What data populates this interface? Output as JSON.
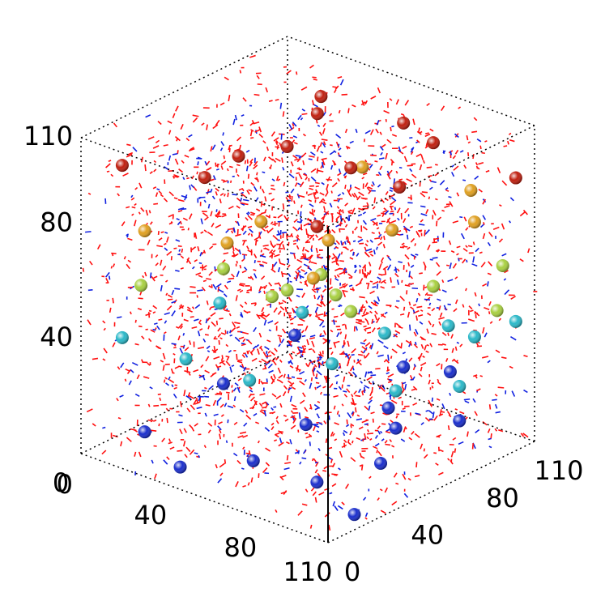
{
  "chart_data": {
    "type": "scatter3d",
    "xlim": [
      0,
      110
    ],
    "xticks": [
      0,
      40,
      80,
      110
    ],
    "ylim": [
      0,
      110
    ],
    "yticks": [
      0,
      40,
      80,
      110
    ],
    "zlim": [
      0,
      110
    ],
    "zticks": [
      0,
      40,
      80,
      110
    ],
    "series": [
      {
        "color": "#1a2ecc",
        "x": [
          20,
          40,
          60,
          80,
          100,
          90,
          70,
          110,
          30,
          50,
          105,
          20,
          60,
          85
        ],
        "y": [
          10,
          5,
          20,
          30,
          40,
          60,
          80,
          70,
          40,
          60,
          20,
          90,
          100,
          95
        ],
        "z": [
          10,
          5,
          8,
          3,
          12,
          15,
          10,
          20,
          20,
          5,
          2,
          18,
          15,
          22
        ]
      },
      {
        "color": "#2ab8c8",
        "x": [
          10,
          30,
          50,
          70,
          90,
          110,
          100,
          80,
          40,
          60,
          20,
          110
        ],
        "y": [
          10,
          20,
          30,
          50,
          60,
          70,
          90,
          100,
          70,
          90,
          50,
          100
        ],
        "z": [
          40,
          35,
          30,
          35,
          28,
          32,
          40,
          35,
          38,
          30,
          42,
          45
        ]
      },
      {
        "color": "#a8d040",
        "x": [
          10,
          30,
          50,
          70,
          90,
          110,
          60,
          40,
          100,
          80
        ],
        "y": [
          20,
          40,
          50,
          60,
          80,
          90,
          30,
          80,
          105,
          40
        ],
        "z": [
          55,
          60,
          55,
          50,
          58,
          52,
          62,
          48,
          60,
          65
        ]
      },
      {
        "color": "#e0a020",
        "x": [
          20,
          40,
          60,
          80,
          100,
          50,
          30,
          90,
          70
        ],
        "y": [
          10,
          30,
          60,
          70,
          90,
          90,
          60,
          100,
          40
        ],
        "z": [
          80,
          75,
          72,
          78,
          80,
          85,
          70,
          85,
          68
        ]
      },
      {
        "color": "#c02010",
        "x": [
          10,
          30,
          50,
          70,
          90,
          110,
          40,
          60,
          20,
          80,
          100,
          30
        ],
        "y": [
          10,
          30,
          50,
          60,
          80,
          100,
          80,
          100,
          60,
          30,
          50,
          90
        ],
        "z": [
          100,
          95,
          105,
          100,
          108,
          95,
          110,
          100,
          90,
          92,
          105,
          98
        ]
      }
    ]
  }
}
